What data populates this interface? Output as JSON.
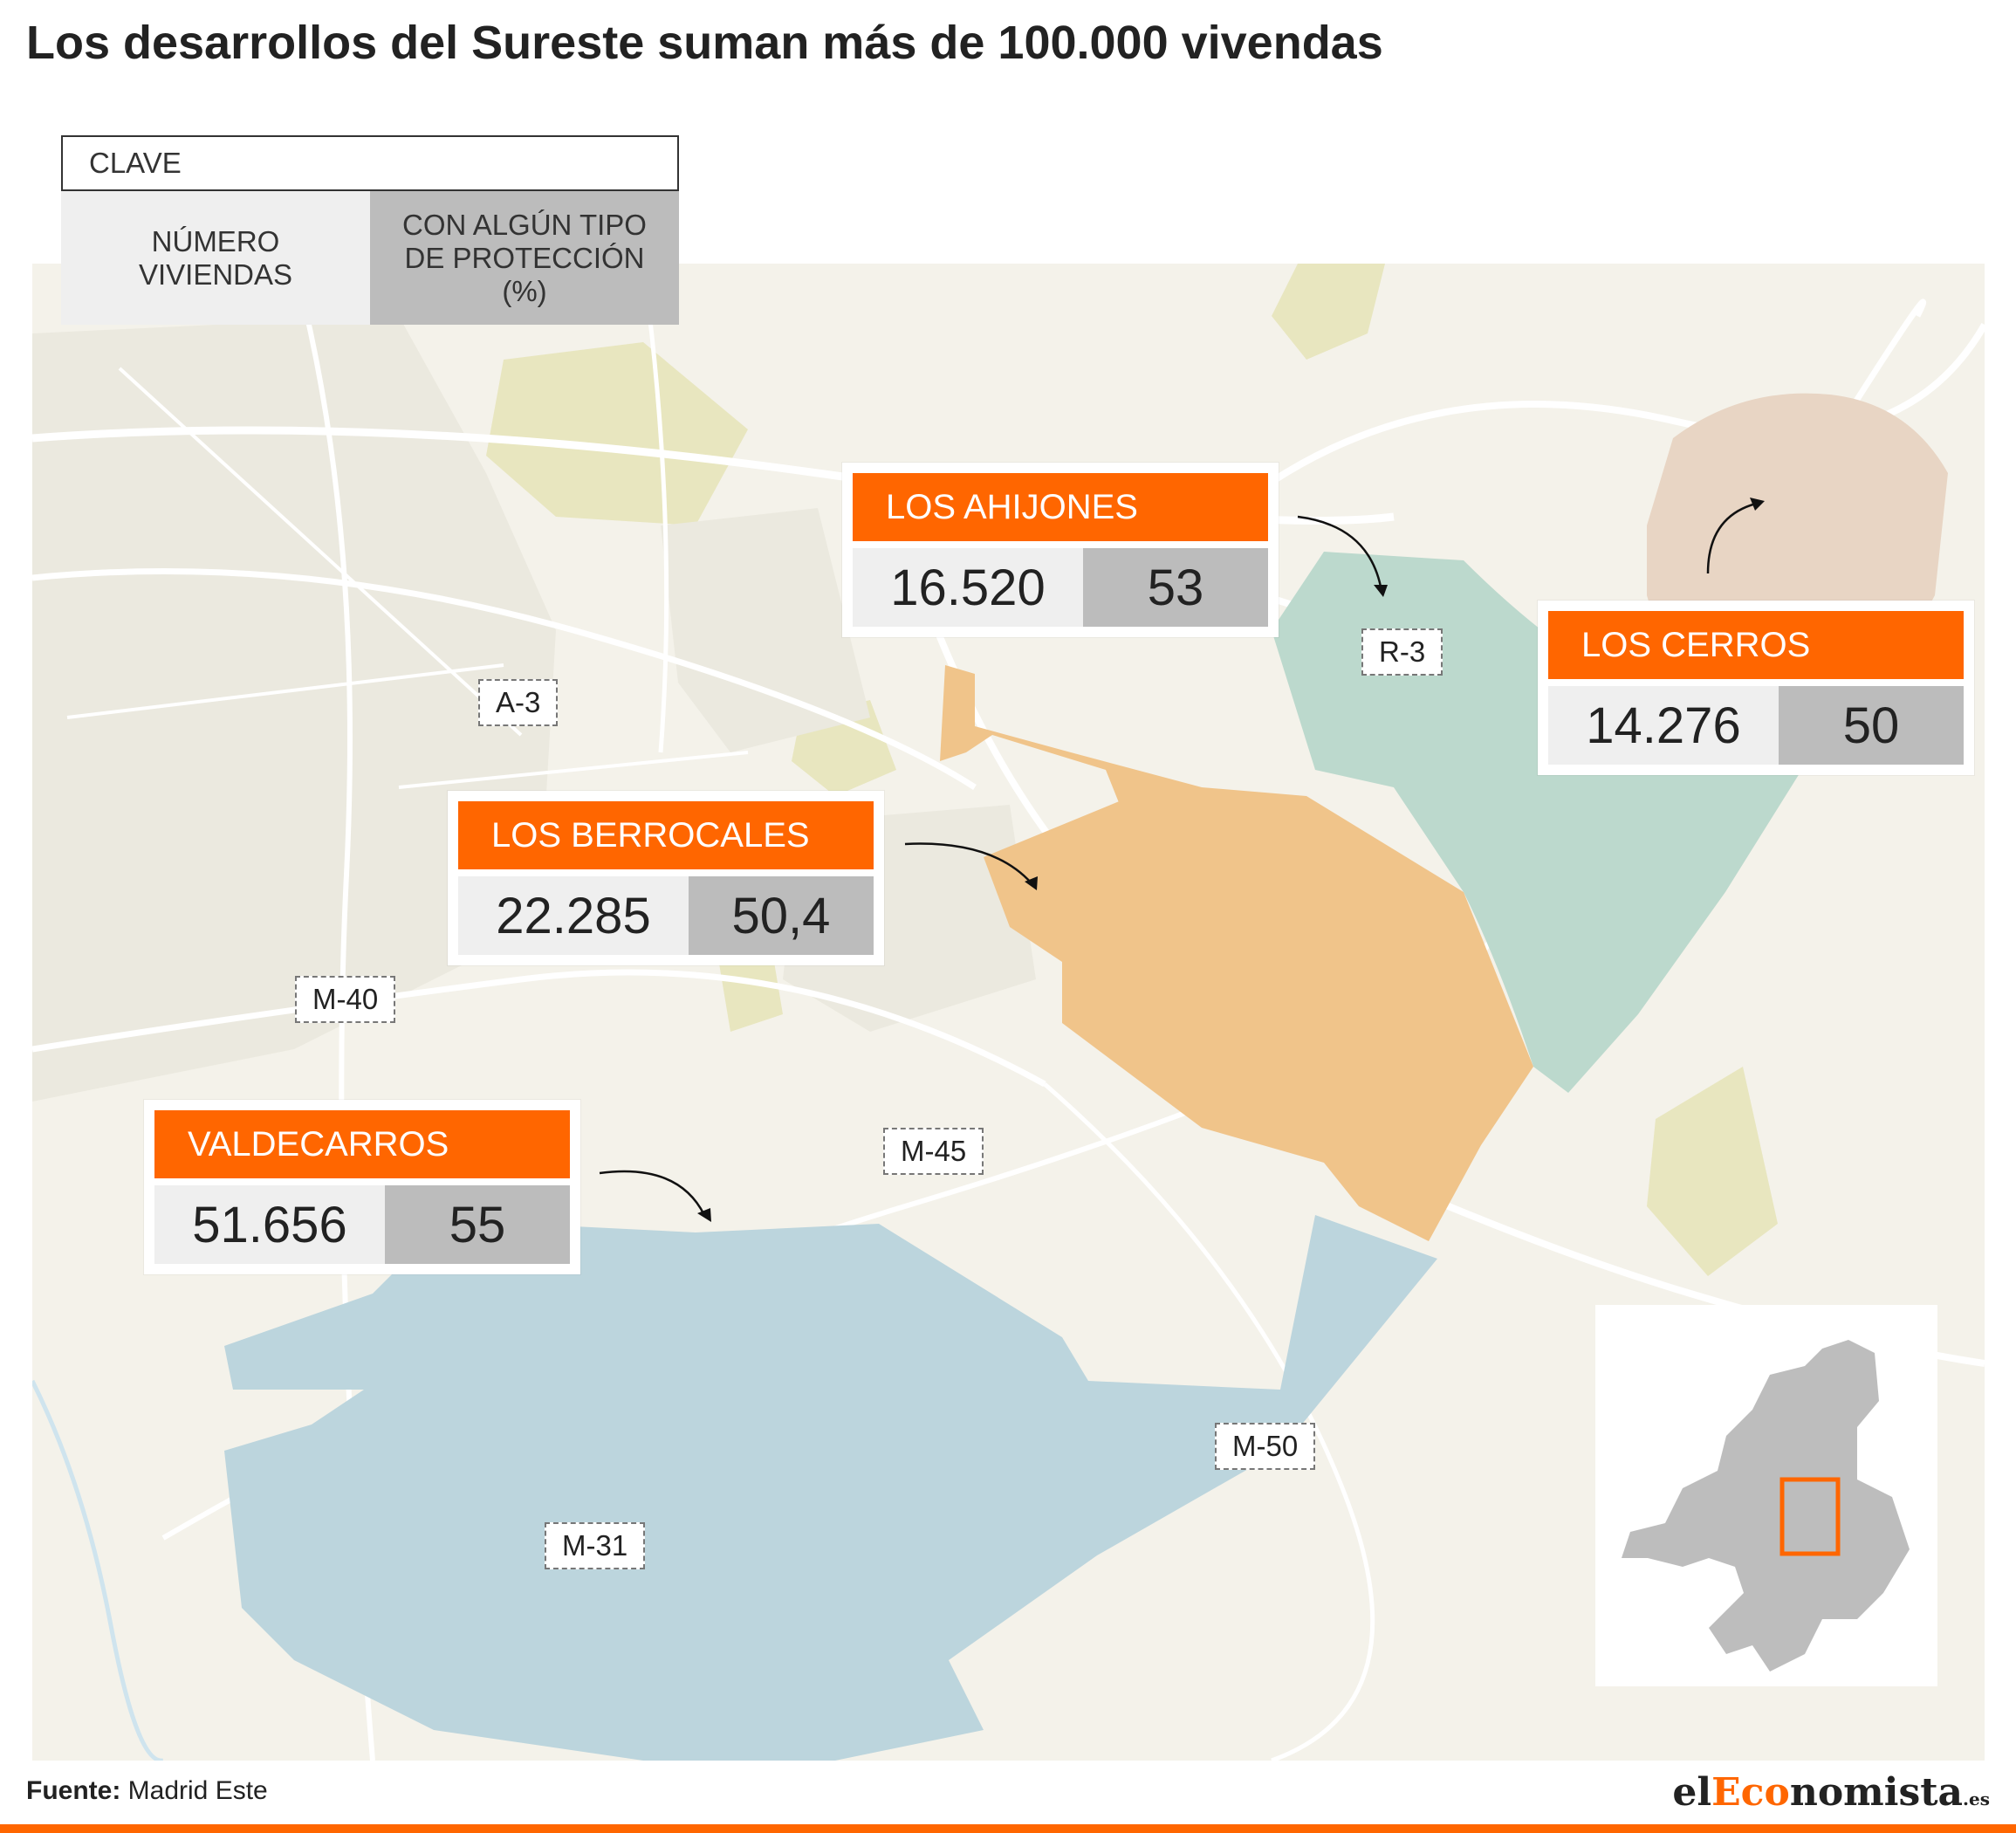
{
  "title": "Los desarrollos del Sureste suman más de 100.000 vivendas",
  "legend": {
    "head": "CLAVE",
    "num_label": "NÚMERO VIVIENDAS",
    "prot_label": "CON ALGÚN TIPO DE PROTECCIÓN (%)"
  },
  "developments": [
    {
      "name": "LOS AHIJONES",
      "viviendas": "16.520",
      "proteccion": "53",
      "color": "#bcd9cd"
    },
    {
      "name": "LOS CERROS",
      "viviendas": "14.276",
      "proteccion": "50",
      "color": "#e8d5c4"
    },
    {
      "name": "LOS BERROCALES",
      "viviendas": "22.285",
      "proteccion": "50,4",
      "color": "#f0c48a"
    },
    {
      "name": "VALDECARROS",
      "viviendas": "51.656",
      "proteccion": "55",
      "color": "#bcd5dd"
    }
  ],
  "roads": [
    "A-3",
    "R-3",
    "M-40",
    "M-45",
    "M-50",
    "M-31"
  ],
  "source": {
    "label": "Fuente:",
    "value": "Madrid Este"
  },
  "brand": {
    "part1": "el",
    "part2": "Eco",
    "part3": "nomista",
    "suffix": ".es"
  },
  "colors": {
    "accent": "#ff6600",
    "map_bg": "#f4f2ea",
    "park": "#e8e6bf",
    "prot_cell": "#bcbcbc",
    "num_cell": "#efefef"
  }
}
